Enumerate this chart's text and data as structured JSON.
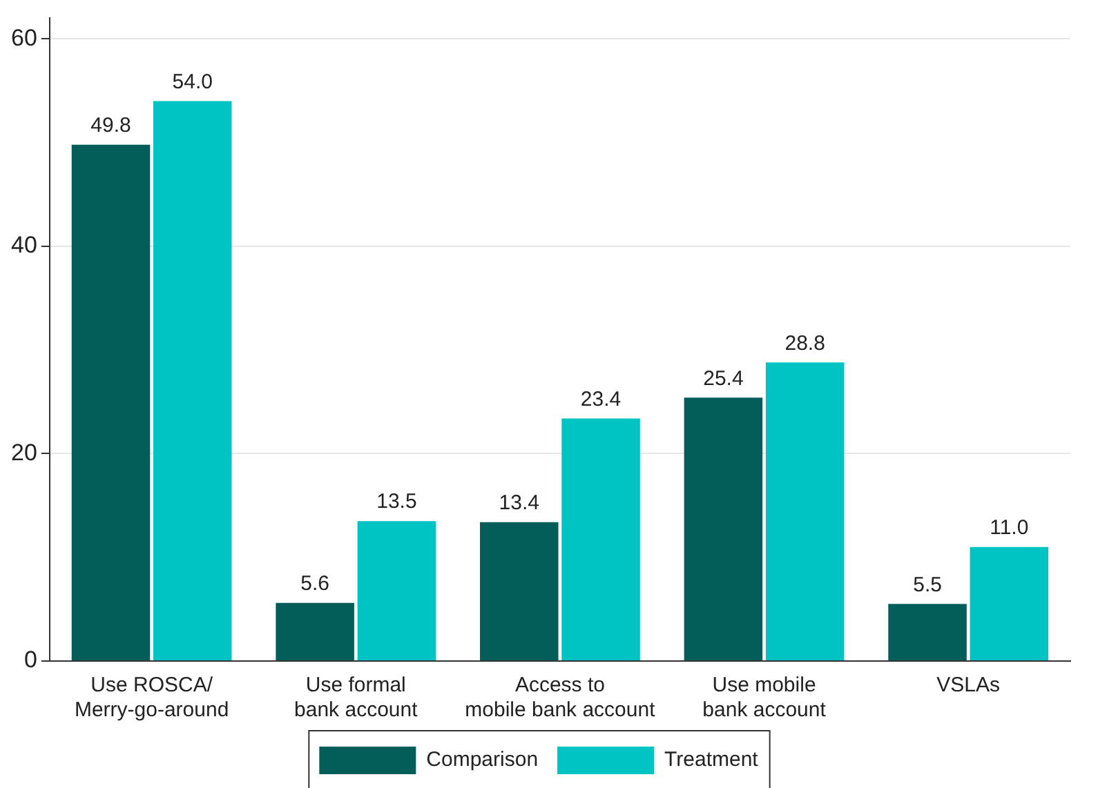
{
  "chart_data": {
    "type": "bar",
    "categories": [
      "Use ROSCA/\nMerry-go-around",
      "Use formal\nbank account",
      "Access to\nmobile bank account",
      "Use mobile\nbank account",
      "VSLAs"
    ],
    "series": [
      {
        "name": "Comparison",
        "color": "#035e5a",
        "values": [
          49.8,
          5.6,
          13.4,
          25.4,
          5.5
        ],
        "value_labels": [
          "49.8",
          "5.6",
          "13.4",
          "25.4",
          "5.5"
        ]
      },
      {
        "name": "Treatment",
        "color": "#00c4c4",
        "values": [
          54.0,
          13.5,
          23.4,
          28.8,
          11.0
        ],
        "value_labels": [
          "54.0",
          "13.5",
          "23.4",
          "28.8",
          "11.0"
        ]
      }
    ],
    "ylim": [
      0,
      62
    ],
    "yticks": [
      0,
      20,
      40,
      60
    ],
    "grid": "y",
    "legend": "bottom"
  }
}
